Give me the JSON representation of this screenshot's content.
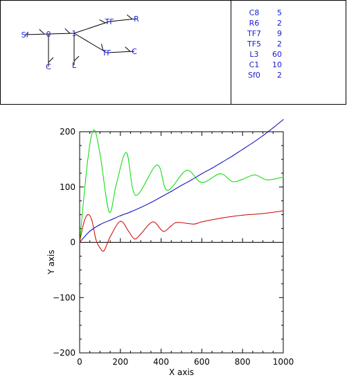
{
  "bond_graph": {
    "nodes": [
      {
        "id": "Sf",
        "label": "Sf"
      },
      {
        "id": "J0",
        "label": "0"
      },
      {
        "id": "J1",
        "label": "1"
      },
      {
        "id": "C_b",
        "label": "C"
      },
      {
        "id": "L",
        "label": "L"
      },
      {
        "id": "TFu",
        "label": "TF"
      },
      {
        "id": "R",
        "label": "R"
      },
      {
        "id": "TFd",
        "label": "TF"
      },
      {
        "id": "C_r",
        "label": "C"
      }
    ],
    "bonds": [
      {
        "from": "Sf",
        "to": "J0"
      },
      {
        "from": "J0",
        "to": "J1"
      },
      {
        "from": "J0",
        "to": "C_b"
      },
      {
        "from": "J1",
        "to": "L"
      },
      {
        "from": "J1",
        "to": "TFu"
      },
      {
        "from": "TFu",
        "to": "R"
      },
      {
        "from": "J1",
        "to": "TFd"
      },
      {
        "from": "TFd",
        "to": "C_r"
      }
    ]
  },
  "parameters": [
    {
      "name": "C8",
      "value": "5"
    },
    {
      "name": "R6",
      "value": "2"
    },
    {
      "name": "TF7",
      "value": "9"
    },
    {
      "name": "TF5",
      "value": "2"
    },
    {
      "name": "L3",
      "value": "60"
    },
    {
      "name": "C1",
      "value": "10"
    },
    {
      "name": "Sf0",
      "value": "2"
    }
  ],
  "colors": {
    "panel_text": "#1a1ad0",
    "green": "#00dd00",
    "blue": "#0000bb",
    "red": "#cc0000"
  },
  "chart_data": {
    "type": "line",
    "xlabel": "X axis",
    "ylabel": "Y axis",
    "xlim": [
      0,
      1000
    ],
    "ylim": [
      -200,
      200
    ],
    "xticks": [
      0,
      200,
      400,
      600,
      800,
      1000
    ],
    "yticks": [
      -200,
      -100,
      0,
      100,
      200
    ],
    "series": [
      {
        "key": "green",
        "x": [
          0,
          40,
          70,
          100,
          145,
          180,
          230,
          275,
          380,
          430,
          525,
          600,
          690,
          750,
          800,
          860,
          920,
          1000
        ],
        "values": [
          0,
          150,
          203,
          160,
          55,
          105,
          162,
          85,
          140,
          94,
          130,
          108,
          124,
          110,
          114,
          122,
          113,
          118
        ]
      },
      {
        "key": "blue",
        "x": [
          0,
          50,
          100,
          150,
          200,
          250,
          300,
          350,
          400,
          450,
          500,
          550,
          600,
          650,
          700,
          750,
          800,
          850,
          900,
          950,
          1000
        ],
        "values": [
          0,
          20,
          32,
          40,
          48,
          55,
          63,
          72,
          82,
          92,
          103,
          113,
          124,
          134,
          145,
          156,
          168,
          180,
          193,
          207,
          222
        ]
      },
      {
        "key": "red",
        "x": [
          0,
          20,
          40,
          60,
          80,
          100,
          120,
          150,
          200,
          240,
          270,
          300,
          360,
          410,
          450,
          480,
          560,
          600,
          700,
          800,
          900,
          1000
        ],
        "values": [
          0,
          35,
          50,
          40,
          5,
          -10,
          -15,
          10,
          38,
          20,
          6,
          15,
          37,
          20,
          30,
          36,
          33,
          37,
          44,
          49,
          52,
          57
        ]
      }
    ]
  }
}
